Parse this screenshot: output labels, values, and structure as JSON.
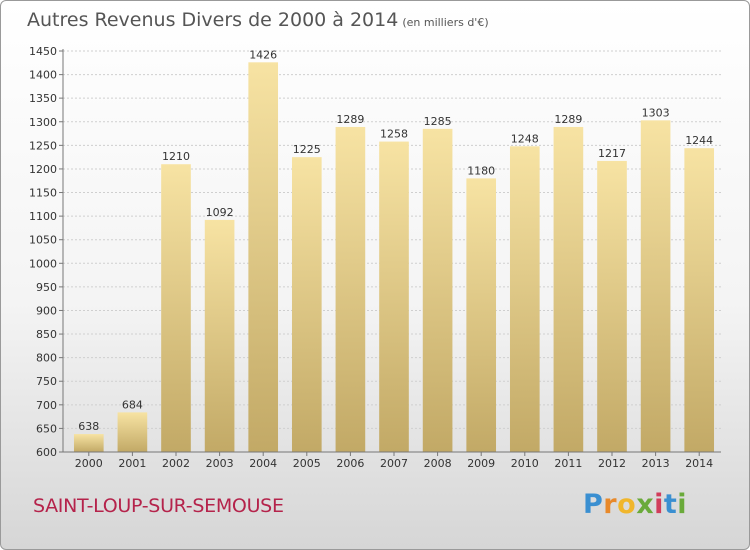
{
  "title": "Autres Revenus Divers de 2000 à 2014",
  "title_unit": "(en milliers d'€)",
  "city": "SAINT-LOUP-SUR-SEMOUSE",
  "brand": {
    "letters": [
      "P",
      "r",
      "o",
      "x",
      "i",
      "t",
      "i"
    ],
    "colors": [
      "#3a8fd1",
      "#e8892a",
      "#f0b62c",
      "#6aaa3a",
      "#d13d5b",
      "#3a8fd1",
      "#6aaa3a"
    ]
  },
  "colors": {
    "bar_light": "#f7e3a3",
    "bar_dark": "#c2a966",
    "city": "#b5234b"
  },
  "chart_data": {
    "type": "bar",
    "categories": [
      "2000",
      "2001",
      "2002",
      "2003",
      "2004",
      "2005",
      "2006",
      "2007",
      "2008",
      "2009",
      "2010",
      "2011",
      "2012",
      "2013",
      "2014"
    ],
    "values": [
      638,
      684,
      1210,
      1092,
      1426,
      1225,
      1289,
      1258,
      1285,
      1180,
      1248,
      1289,
      1217,
      1303,
      1244
    ],
    "ylim": [
      600,
      1450
    ],
    "yticks": [
      600,
      650,
      700,
      750,
      800,
      850,
      900,
      950,
      1000,
      1050,
      1100,
      1150,
      1200,
      1250,
      1300,
      1350,
      1400,
      1450
    ],
    "grid": true,
    "data_labels": true
  }
}
